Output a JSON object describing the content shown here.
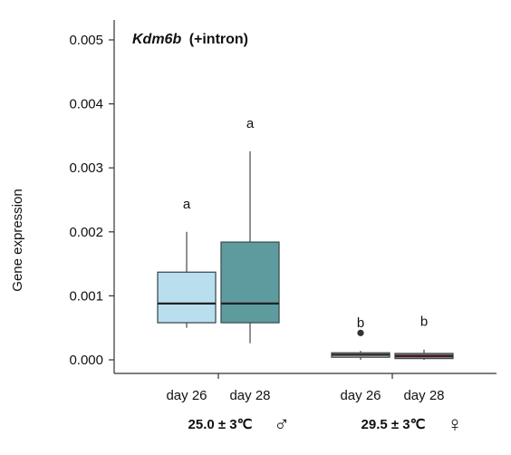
{
  "chart_data": {
    "type": "box",
    "title": "Kdm6b",
    "title_suffix": "(+intron)",
    "ylabel": "Gene expression",
    "ylim": [
      0,
      0.005
    ],
    "y_ticks": [
      "0.000",
      "0.001",
      "0.002",
      "0.003",
      "0.004",
      "0.005"
    ],
    "grid": false,
    "groups": [
      {
        "label": "25.0 ± 3℃",
        "symbol": "♂",
        "boxes": [
          {
            "category": "day 26",
            "min": 0.0005,
            "q1": 0.00058,
            "median": 0.00088,
            "q3": 0.00137,
            "max": 0.002,
            "outliers": [],
            "color": "#b9dfee",
            "significance": "a"
          },
          {
            "category": "day 28",
            "min": 0.00026,
            "q1": 0.00058,
            "median": 0.00088,
            "q3": 0.00184,
            "max": 0.00326,
            "outliers": [],
            "color": "#5e9b9e",
            "significance": "a"
          }
        ]
      },
      {
        "label": "29.5 ± 3℃",
        "symbol": "♀",
        "boxes": [
          {
            "category": "day 26",
            "min": 0.0,
            "q1": 4e-05,
            "median": 8e-05,
            "q3": 0.00011,
            "max": 0.00014,
            "outliers": [
              0.00042
            ],
            "color": "#d7b8b8",
            "significance": "b"
          },
          {
            "category": "day 28",
            "min": 0.0,
            "q1": 2e-05,
            "median": 6e-05,
            "q3": 0.0001,
            "max": 0.00016,
            "outliers": [],
            "color": "#a86c74",
            "significance": "b"
          }
        ]
      }
    ]
  }
}
